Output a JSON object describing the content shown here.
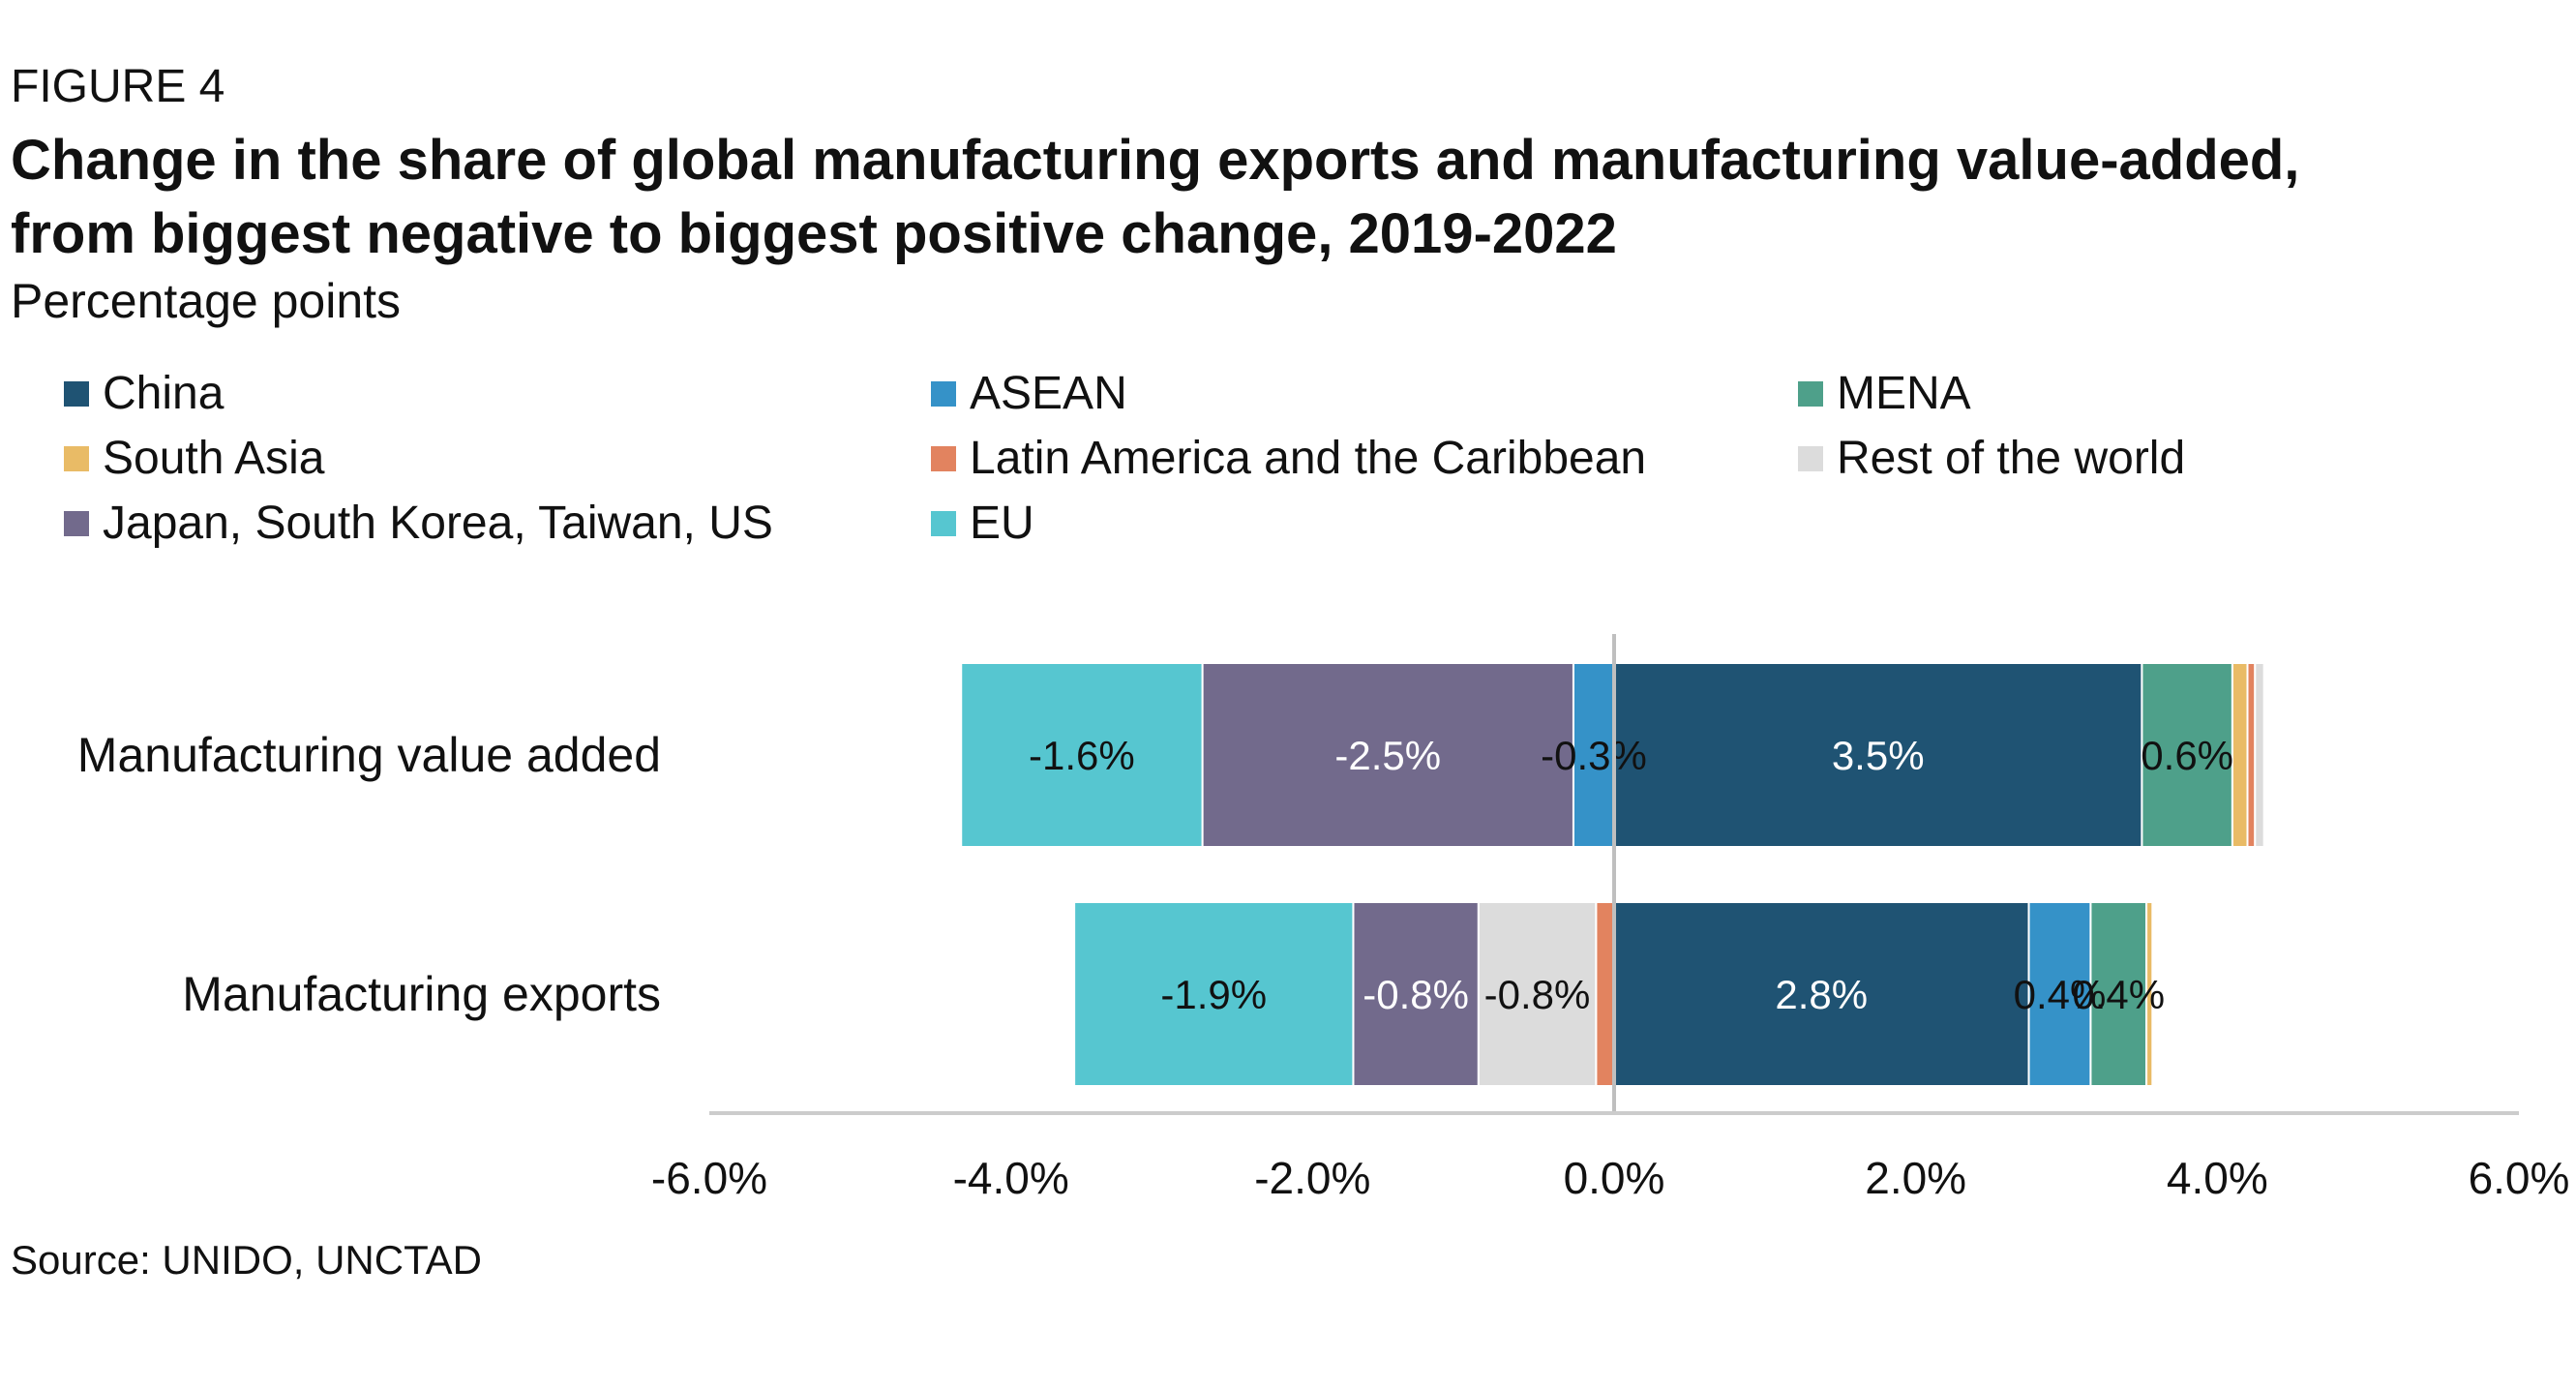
{
  "header": {
    "figure_label": "FIGURE 4",
    "title_line1": "Change in the share of global manufacturing exports and manufacturing value-added,",
    "title_line2": "from biggest negative to biggest positive change, 2019-2022",
    "subtitle": "Percentage points"
  },
  "legend": [
    {
      "name": "China",
      "color": "#1f5373"
    },
    {
      "name": "ASEAN",
      "color": "#3592c8"
    },
    {
      "name": "MENA",
      "color": "#4ea08a"
    },
    {
      "name": "South Asia",
      "color": "#e9bb66"
    },
    {
      "name": "Latin America and the Caribbean",
      "color": "#e2835f"
    },
    {
      "name": "Rest of the world",
      "color": "#dcdcdc"
    },
    {
      "name": "Japan, South Korea, Taiwan, US",
      "color": "#726a8c"
    },
    {
      "name": "EU",
      "color": "#56c6d0"
    }
  ],
  "chart_data": {
    "type": "bar",
    "orientation": "horizontal",
    "stacked": true,
    "title": "Change in the share of global manufacturing exports and manufacturing value-added, from biggest negative to biggest positive change, 2019-2022",
    "xlabel": "",
    "ylabel": "",
    "xlim": [
      -6,
      6
    ],
    "x_tick_values": [
      -6,
      -4,
      -2,
      0,
      2,
      4,
      6
    ],
    "x_tick_labels": [
      "-6.0%",
      "-4.0%",
      "-2.0%",
      "0.0%",
      "2.0%",
      "4.0%",
      "6.0%"
    ],
    "grid": false,
    "legend_position": "top",
    "categories": [
      "Manufacturing value added",
      "Manufacturing exports"
    ],
    "bars": [
      {
        "category": "Manufacturing value added",
        "segments": [
          {
            "series": "ASEAN",
            "value": -0.27,
            "label": "-0.3%"
          },
          {
            "series": "Japan, South Korea, Taiwan, US",
            "value": -2.46,
            "label": "-2.5%"
          },
          {
            "series": "EU",
            "value": -1.6,
            "label": "-1.6%"
          },
          {
            "series": "China",
            "value": 3.5,
            "label": "3.5%"
          },
          {
            "series": "MENA",
            "value": 0.6,
            "label": "0.6%"
          },
          {
            "series": "South Asia",
            "value": 0.1,
            "label": ""
          },
          {
            "series": "Latin America and the Caribbean",
            "value": 0.05,
            "label": ""
          },
          {
            "series": "Rest of the world",
            "value": 0.06,
            "label": ""
          }
        ]
      },
      {
        "category": "Manufacturing exports",
        "segments": [
          {
            "series": "Latin America and the Caribbean",
            "value": -0.12,
            "label": ""
          },
          {
            "series": "Rest of the world",
            "value": -0.78,
            "label": "-0.8%"
          },
          {
            "series": "Japan, South Korea, Taiwan, US",
            "value": -0.83,
            "label": "-0.8%"
          },
          {
            "series": "EU",
            "value": -1.85,
            "label": "-1.9%"
          },
          {
            "series": "China",
            "value": 2.75,
            "label": "2.8%"
          },
          {
            "series": "ASEAN",
            "value": 0.41,
            "label": "0.4%"
          },
          {
            "series": "MENA",
            "value": 0.37,
            "label": "0.4%"
          },
          {
            "series": "South Asia",
            "value": 0.04,
            "label": ""
          }
        ]
      }
    ]
  },
  "source": "Source: UNIDO, UNCTAD"
}
